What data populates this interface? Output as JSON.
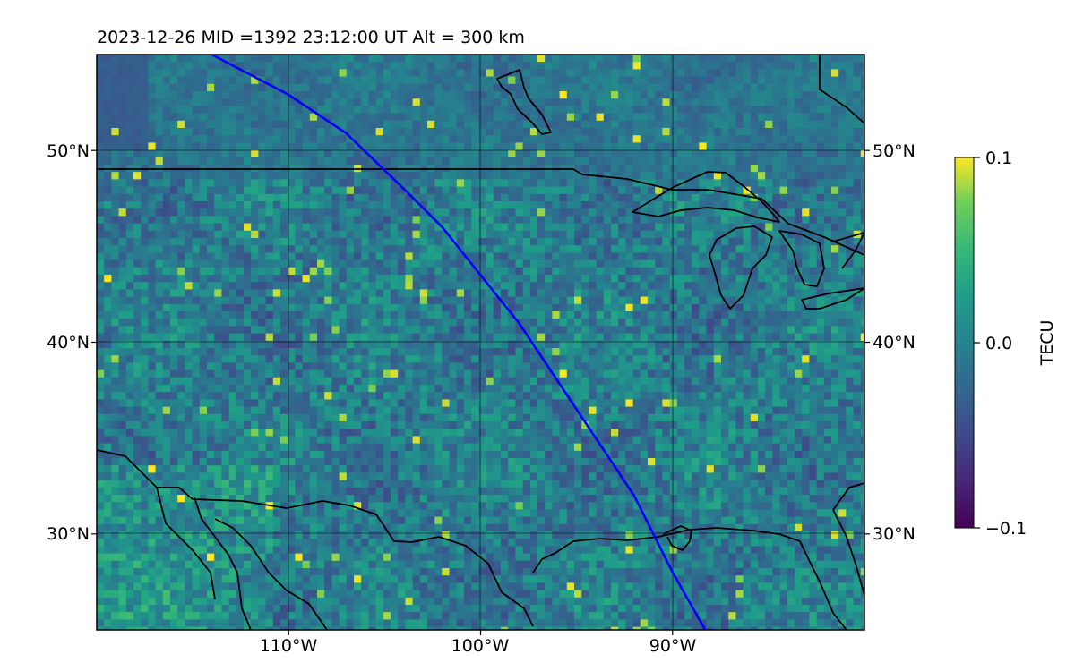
{
  "title": "2023-12-26  MID =1392    23:12:00  UT  Alt = 300 km",
  "map": {
    "lon_range": [
      -120,
      -80
    ],
    "lat_range": [
      25,
      55
    ],
    "lon_gridlines": [
      -110,
      -100,
      -90
    ],
    "lat_gridlines": [
      30,
      40,
      50
    ],
    "lon_tick_labels": [
      "110°W",
      "100°W",
      "90°W"
    ],
    "lat_tick_labels": [
      "30°N",
      "40°N",
      "50°N"
    ],
    "colormap": "viridis",
    "track_color": "#0000ff",
    "coast_color": "#000000",
    "grid_color": "#000000",
    "satellite_track": [
      [
        -114,
        55
      ],
      [
        -110,
        52.9
      ],
      [
        -107,
        50.9
      ],
      [
        -104,
        48
      ],
      [
        -102,
        46
      ],
      [
        -100,
        43.5
      ],
      [
        -98,
        41
      ],
      [
        -96,
        38
      ],
      [
        -94,
        35
      ],
      [
        -92,
        32
      ],
      [
        -90,
        28
      ],
      [
        -88.3,
        25
      ]
    ],
    "overlay_features": "satellite track, coastlines, country borders, gridlines"
  },
  "colorbar": {
    "label": "TECU",
    "min": -0.1,
    "max": 0.1,
    "tick_labels": [
      "0.1",
      "0.0",
      "−0.1"
    ]
  }
}
